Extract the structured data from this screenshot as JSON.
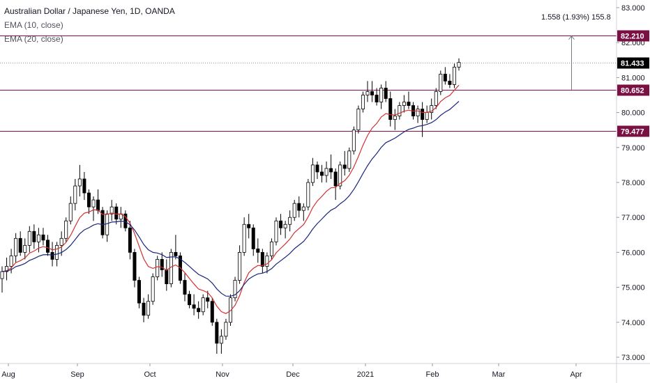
{
  "legend": {
    "title": "Australian Dollar / Japanese Yen, 1D, OANDA",
    "ema10": "EMA (10, close)",
    "ema20": "EMA (20, close)"
  },
  "measure_label": "1.558 (1.93%) 155.8",
  "colors": {
    "ema10": "#d32f2f",
    "ema20": "#1a237e",
    "level": "#880e4f",
    "tag_level": "#7b1042",
    "tag_current": "#000000",
    "candle": "#000000",
    "grid": "#e0e3eb"
  },
  "chart_data": {
    "type": "candlestick",
    "y_ticks": [
      "83.000",
      "82.000",
      "81.000",
      "80.000",
      "79.000",
      "78.000",
      "77.000",
      "76.000",
      "75.000",
      "74.000",
      "73.000"
    ],
    "x_ticks": [
      "Aug",
      "Sep",
      "Oct",
      "Nov",
      "Dec",
      "2021",
      "Feb",
      "Mar",
      "Apr"
    ],
    "ylim": [
      72.9,
      83.2
    ],
    "horizontal_levels": [
      {
        "value": 82.21,
        "label": "82.210"
      },
      {
        "value": 80.652,
        "label": "80.652"
      },
      {
        "value": 79.477,
        "label": "79.477"
      }
    ],
    "current_price": {
      "value": 81.433,
      "label": "81.433"
    },
    "candles": [
      [
        75.25,
        75.6,
        74.85,
        75.45
      ],
      [
        75.45,
        75.85,
        75.2,
        75.6
      ],
      [
        75.6,
        76.1,
        75.4,
        75.9
      ],
      [
        75.9,
        76.55,
        75.7,
        76.4
      ],
      [
        76.4,
        76.6,
        75.9,
        76.0
      ],
      [
        76.0,
        76.4,
        75.8,
        76.2
      ],
      [
        76.2,
        76.75,
        76.0,
        76.6
      ],
      [
        76.6,
        76.8,
        76.1,
        76.3
      ],
      [
        76.3,
        76.7,
        76.0,
        76.5
      ],
      [
        76.5,
        76.7,
        76.2,
        76.35
      ],
      [
        76.35,
        76.5,
        75.9,
        76.0
      ],
      [
        76.0,
        76.3,
        75.6,
        75.8
      ],
      [
        75.8,
        76.3,
        75.6,
        76.2
      ],
      [
        76.2,
        76.6,
        75.9,
        76.4
      ],
      [
        76.4,
        77.0,
        76.3,
        76.9
      ],
      [
        76.9,
        77.6,
        76.8,
        77.4
      ],
      [
        77.4,
        78.1,
        77.2,
        77.9
      ],
      [
        77.9,
        78.5,
        77.6,
        78.1
      ],
      [
        78.1,
        78.3,
        77.5,
        77.7
      ],
      [
        77.7,
        77.8,
        77.1,
        77.3
      ],
      [
        77.3,
        77.6,
        76.9,
        77.5
      ],
      [
        77.5,
        77.8,
        77.1,
        77.2
      ],
      [
        77.2,
        77.3,
        76.4,
        76.5
      ],
      [
        76.5,
        77.2,
        76.3,
        77.1
      ],
      [
        77.1,
        77.5,
        76.9,
        77.3
      ],
      [
        77.3,
        77.4,
        76.8,
        76.95
      ],
      [
        76.95,
        77.3,
        76.7,
        77.1
      ],
      [
        77.1,
        77.2,
        76.6,
        76.7
      ],
      [
        76.7,
        76.9,
        75.8,
        76.0
      ],
      [
        76.0,
        76.1,
        75.0,
        75.2
      ],
      [
        75.2,
        75.3,
        74.4,
        74.55
      ],
      [
        74.55,
        74.7,
        74.0,
        74.2
      ],
      [
        74.2,
        74.8,
        74.1,
        74.6
      ],
      [
        74.6,
        75.4,
        74.5,
        75.3
      ],
      [
        75.3,
        75.9,
        75.2,
        75.8
      ],
      [
        75.8,
        76.0,
        75.3,
        75.5
      ],
      [
        75.5,
        75.8,
        74.9,
        75.1
      ],
      [
        75.1,
        76.1,
        75.0,
        76.0
      ],
      [
        76.0,
        76.5,
        75.8,
        75.9
      ],
      [
        75.9,
        76.0,
        75.1,
        75.2
      ],
      [
        75.2,
        75.4,
        74.6,
        74.8
      ],
      [
        74.8,
        74.9,
        74.4,
        74.5
      ],
      [
        74.5,
        74.8,
        74.2,
        74.4
      ],
      [
        74.4,
        74.6,
        74.1,
        74.3
      ],
      [
        74.3,
        74.8,
        74.2,
        74.7
      ],
      [
        74.7,
        74.9,
        74.4,
        74.6
      ],
      [
        74.6,
        74.7,
        73.9,
        74.0
      ],
      [
        74.0,
        74.1,
        73.1,
        73.4
      ],
      [
        73.4,
        73.8,
        73.1,
        73.6
      ],
      [
        73.6,
        74.1,
        73.5,
        74.0
      ],
      [
        74.0,
        74.8,
        73.9,
        74.7
      ],
      [
        74.7,
        75.3,
        74.6,
        75.2
      ],
      [
        75.2,
        76.2,
        75.1,
        76.0
      ],
      [
        76.0,
        77.0,
        75.9,
        76.8
      ],
      [
        76.8,
        77.1,
        76.4,
        76.7
      ],
      [
        76.7,
        76.8,
        75.9,
        76.1
      ],
      [
        76.1,
        76.4,
        75.7,
        76.0
      ],
      [
        76.0,
        76.1,
        75.4,
        75.6
      ],
      [
        75.6,
        76.0,
        75.4,
        75.9
      ],
      [
        75.9,
        76.4,
        75.8,
        76.3
      ],
      [
        76.3,
        77.0,
        76.2,
        76.9
      ],
      [
        76.9,
        77.1,
        76.5,
        76.7
      ],
      [
        76.7,
        76.9,
        76.4,
        76.8
      ],
      [
        76.8,
        77.2,
        76.6,
        77.0
      ],
      [
        77.0,
        77.5,
        76.9,
        77.4
      ],
      [
        77.4,
        77.6,
        77.0,
        77.2
      ],
      [
        77.2,
        77.4,
        76.9,
        77.3
      ],
      [
        77.3,
        78.1,
        77.2,
        78.0
      ],
      [
        78.0,
        78.7,
        77.9,
        78.5
      ],
      [
        78.5,
        78.6,
        78.1,
        78.3
      ],
      [
        78.3,
        78.5,
        78.0,
        78.2
      ],
      [
        78.2,
        78.6,
        78.0,
        78.4
      ],
      [
        78.4,
        78.8,
        78.1,
        78.3
      ],
      [
        78.3,
        78.4,
        77.5,
        77.9
      ],
      [
        77.9,
        78.6,
        77.8,
        78.5
      ],
      [
        78.5,
        78.9,
        78.2,
        78.4
      ],
      [
        78.4,
        79.0,
        78.3,
        78.9
      ],
      [
        78.9,
        79.6,
        78.8,
        79.5
      ],
      [
        79.5,
        80.2,
        79.4,
        80.1
      ],
      [
        80.1,
        80.6,
        80.0,
        80.5
      ],
      [
        80.5,
        80.9,
        80.3,
        80.6
      ],
      [
        80.6,
        80.9,
        80.3,
        80.5
      ],
      [
        80.5,
        80.7,
        80.2,
        80.3
      ],
      [
        80.3,
        80.8,
        80.1,
        80.7
      ],
      [
        80.7,
        80.9,
        80.3,
        80.4
      ],
      [
        80.4,
        80.6,
        79.6,
        79.8
      ],
      [
        79.8,
        80.1,
        79.5,
        79.9
      ],
      [
        79.9,
        80.3,
        79.8,
        80.2
      ],
      [
        80.2,
        80.5,
        80.0,
        80.3
      ],
      [
        80.3,
        80.6,
        80.1,
        80.2
      ],
      [
        80.2,
        80.3,
        79.8,
        79.9
      ],
      [
        79.9,
        80.2,
        79.7,
        80.1
      ],
      [
        80.1,
        80.3,
        79.3,
        79.8
      ],
      [
        79.8,
        80.2,
        79.7,
        80.0
      ],
      [
        80.0,
        80.4,
        79.8,
        80.2
      ],
      [
        80.2,
        80.7,
        80.1,
        80.6
      ],
      [
        80.6,
        81.2,
        80.5,
        81.1
      ],
      [
        81.1,
        81.3,
        80.8,
        80.9
      ],
      [
        80.9,
        81.1,
        80.7,
        80.8
      ],
      [
        80.8,
        81.4,
        80.7,
        81.3
      ],
      [
        81.3,
        81.55,
        81.2,
        81.433
      ]
    ]
  }
}
